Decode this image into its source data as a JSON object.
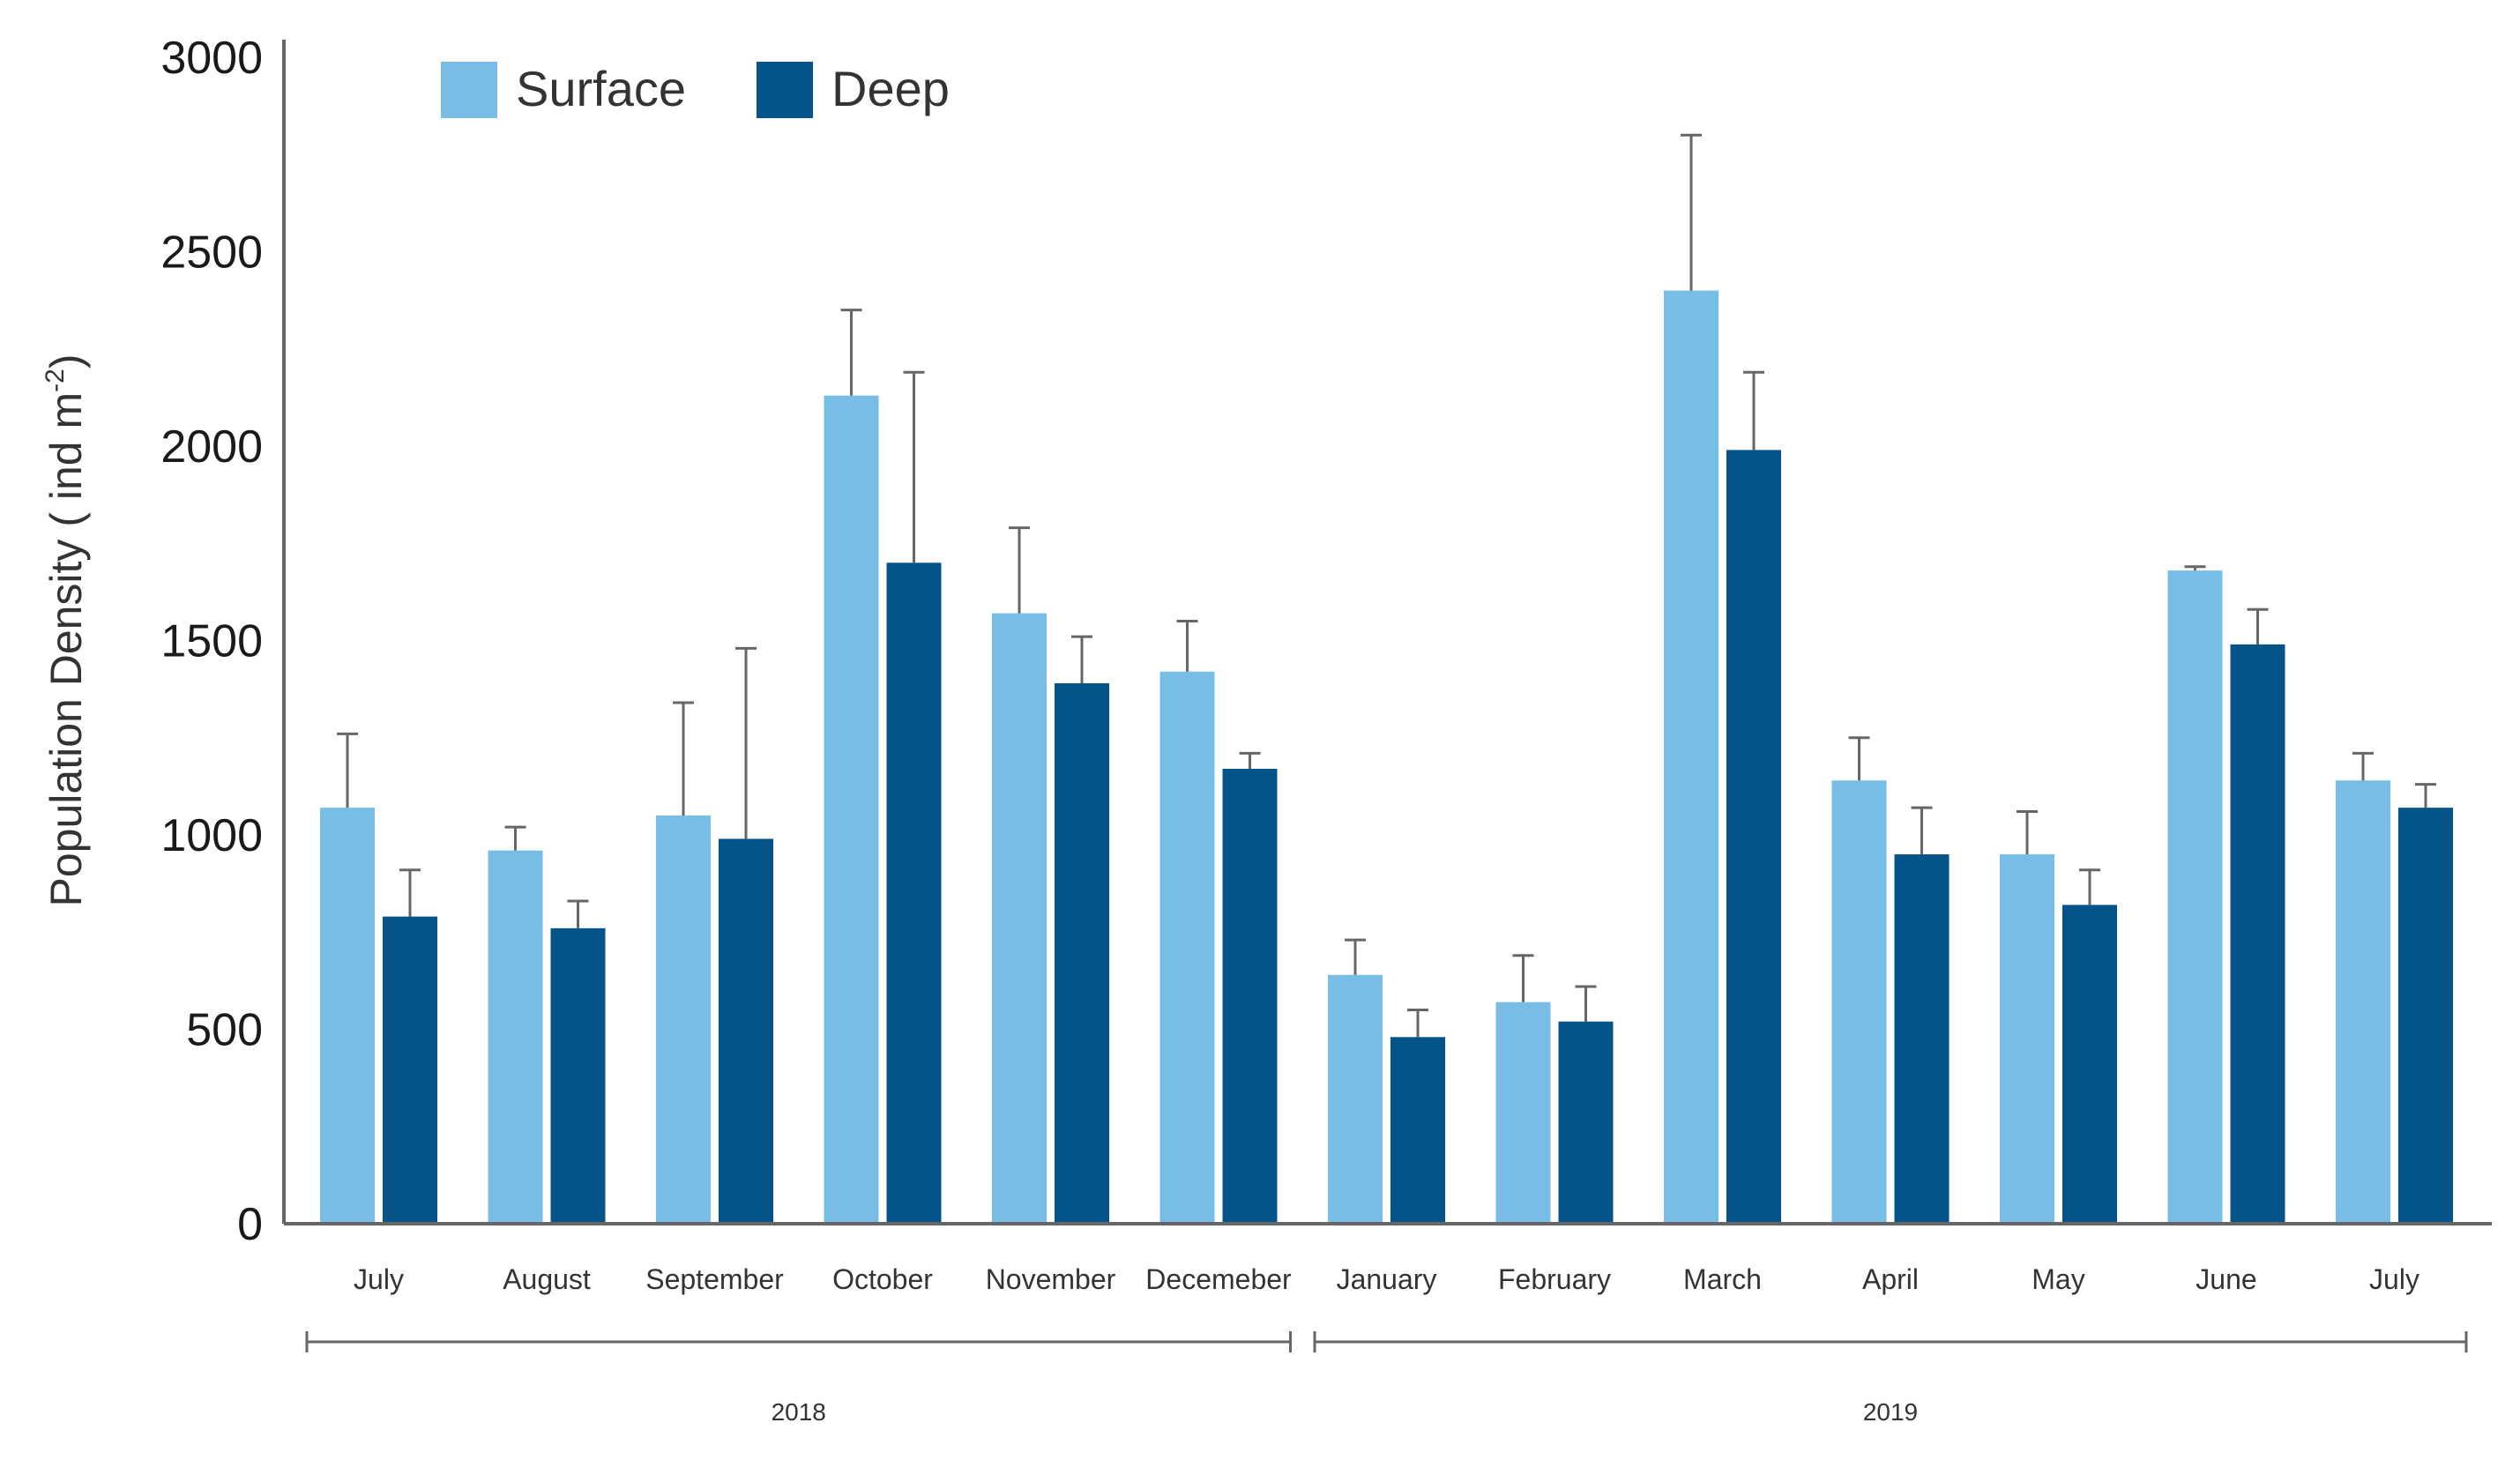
{
  "chart_data": {
    "type": "bar",
    "title": "",
    "xlabel": "",
    "ylabel": "Population Density ( ind m",
    "ylabel_superscript": "-2",
    "ylabel_close": ")",
    "ylim": [
      0,
      3000
    ],
    "yticks": [
      "0",
      "500",
      "1000",
      "1500",
      "2000",
      "2500",
      "3000"
    ],
    "ytick_values": [
      0,
      500,
      1000,
      1500,
      2000,
      2500,
      3000
    ],
    "grid": false,
    "legend_position": "top-left",
    "categories": [
      "July",
      "August",
      "September",
      "October",
      "November",
      "Decemeber",
      "January",
      "February",
      "March",
      "April",
      "May",
      "June",
      "July"
    ],
    "series": [
      {
        "name": "Surface",
        "color": "#77bde6",
        "values": [
          1070,
          960,
          1050,
          2130,
          1570,
          1420,
          640,
          570,
          2400,
          1140,
          950,
          1680,
          1140
        ],
        "error": [
          190,
          60,
          290,
          220,
          220,
          130,
          90,
          120,
          400,
          110,
          110,
          10,
          70
        ]
      },
      {
        "name": "Deep",
        "color": "#045489",
        "values": [
          790,
          760,
          990,
          1700,
          1390,
          1170,
          480,
          520,
          1990,
          950,
          820,
          1490,
          1070
        ],
        "error": [
          120,
          70,
          490,
          490,
          120,
          40,
          70,
          90,
          200,
          120,
          90,
          90,
          60
        ]
      }
    ],
    "groups": [
      {
        "label": "2018",
        "start_index": 0,
        "end_index": 5
      },
      {
        "label": "2019",
        "start_index": 6,
        "end_index": 12
      }
    ]
  },
  "colors": {
    "axis": "#666666",
    "error_bar": "#666666",
    "text": "#333333"
  }
}
